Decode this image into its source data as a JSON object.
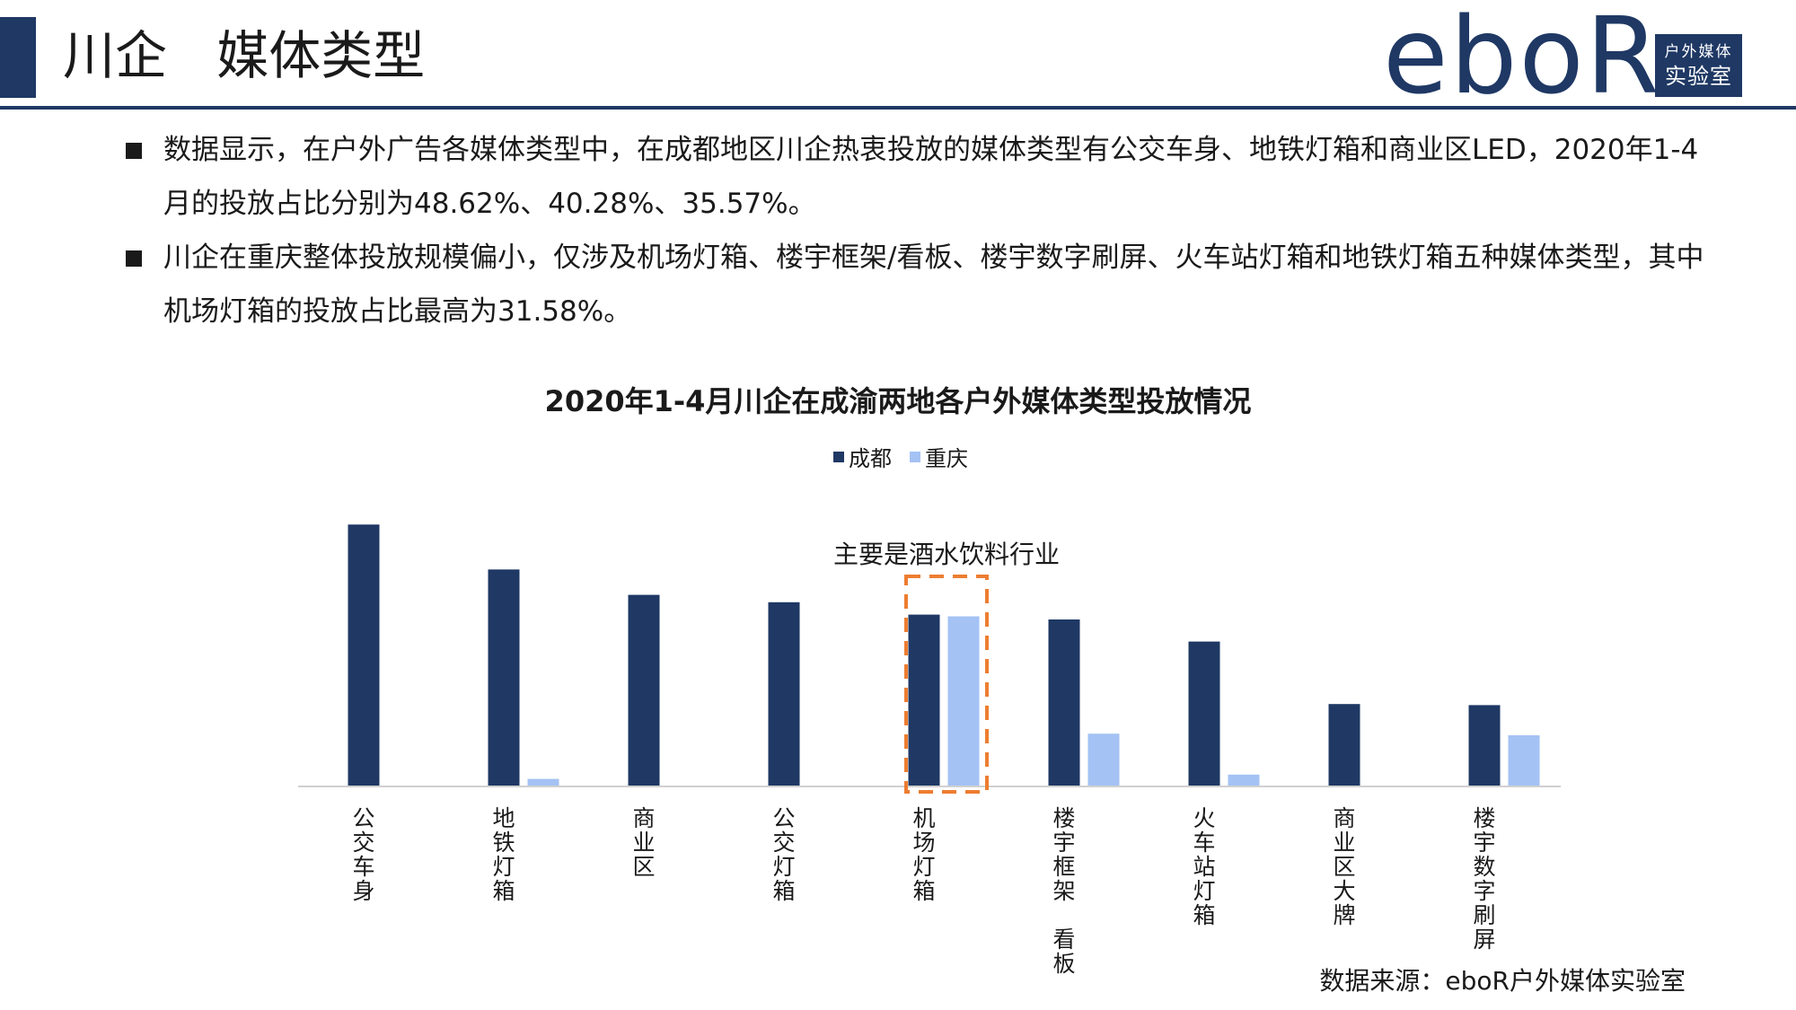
{
  "header": {
    "title": "川企   媒体类型",
    "logo_text": "eboR",
    "logo_box_line1": "户外媒体",
    "logo_box_line2": "实验室"
  },
  "bullets": [
    "数据显示，在户外广告各媒体类型中，在成都地区川企热衷投放的媒体类型有公交车身、地铁灯箱和商业区LED，2020年1-4月的投放占比分别为48.62%、40.28%、35.57%。",
    "川企在重庆整体投放规模偏小，仅涉及机场灯箱、楼宇框架/看板、楼宇数字刷屏、火车站灯箱和地铁灯箱五种媒体类型，其中机场灯箱的投放占比最高为31.58%。"
  ],
  "chart_data": {
    "type": "bar",
    "title": "2020年1-4月川企在成渝两地各户外媒体类型投放情况",
    "categories": [
      "公交车身",
      "地铁灯箱",
      "商业区",
      "公交灯箱",
      "机场灯箱",
      "楼宇框架 看板",
      "火车站灯箱",
      "商业区大牌",
      "楼宇数字刷屏"
    ],
    "series": [
      {
        "name": "成都",
        "color": "#1f3864",
        "values": [
          48.62,
          40.28,
          35.57,
          34.2,
          31.9,
          31.0,
          26.9,
          15.3,
          15.1
        ]
      },
      {
        "name": "重庆",
        "color": "#a4c2f4",
        "values": [
          0,
          1.4,
          0,
          0,
          31.58,
          9.8,
          2.2,
          0,
          9.5
        ]
      }
    ],
    "ylim": [
      0,
      50
    ],
    "grid": false,
    "legend_position": "top-center",
    "annotation": {
      "text": "主要是酒水饮料行业",
      "category": "机场灯箱",
      "color": "#ed7d31"
    }
  },
  "source": "数据来源：eboR户外媒体实验室"
}
